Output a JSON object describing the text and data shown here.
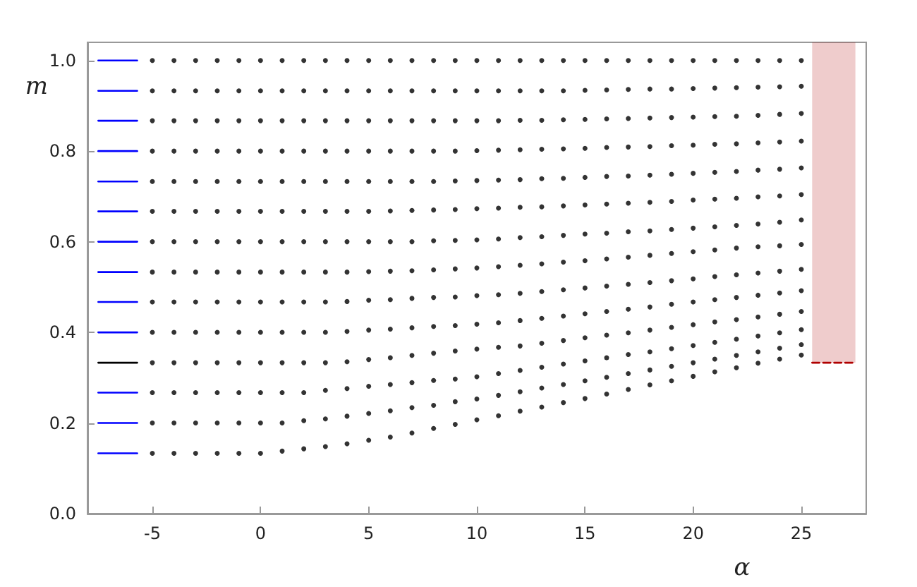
{
  "chart_data": {
    "type": "scatter",
    "xlabel": "α",
    "ylabel": "m",
    "marker": "circle",
    "xlim": [
      -8,
      28
    ],
    "ylim": [
      0,
      1.04
    ],
    "xticks": [
      -5,
      0,
      5,
      10,
      15,
      20,
      25
    ],
    "yticks": [
      {
        "value": 0,
        "label": "0.0"
      },
      {
        "value": 0.2,
        "label": "0.2"
      },
      {
        "value": 0.4,
        "label": "0.4"
      },
      {
        "value": 0.6,
        "label": "0.6"
      },
      {
        "value": 0.8,
        "label": "0.8"
      },
      {
        "value": 1,
        "label": "1.0"
      }
    ],
    "x": [
      -5,
      -4,
      -3,
      -2,
      -1,
      0,
      1,
      2,
      3,
      4,
      5,
      6,
      7,
      8,
      9,
      10,
      11,
      12,
      13,
      14,
      15,
      16,
      17,
      18,
      19,
      20,
      21,
      22,
      23,
      24,
      25
    ],
    "series": [
      {
        "color": "#000000",
        "values": [
          0.133,
          0.133,
          0.133,
          0.133,
          0.133,
          0.133,
          0.138,
          0.143,
          0.148,
          0.154,
          0.162,
          0.169,
          0.178,
          0.188,
          0.197,
          0.207,
          0.216,
          0.226,
          0.235,
          0.245,
          0.254,
          0.264,
          0.274,
          0.284,
          0.293,
          0.303,
          0.313,
          0.322,
          0.332,
          0.341,
          0.35
        ]
      },
      {
        "color": "#000000",
        "values": [
          0.2,
          0.2,
          0.2,
          0.2,
          0.2,
          0.2,
          0.2,
          0.205,
          0.209,
          0.215,
          0.221,
          0.227,
          0.234,
          0.239,
          0.247,
          0.253,
          0.261,
          0.269,
          0.277,
          0.285,
          0.293,
          0.301,
          0.309,
          0.317,
          0.325,
          0.333,
          0.341,
          0.349,
          0.357,
          0.365,
          0.373
        ]
      },
      {
        "color": "#000000",
        "values": [
          0.267,
          0.267,
          0.267,
          0.267,
          0.267,
          0.267,
          0.267,
          0.267,
          0.272,
          0.276,
          0.281,
          0.285,
          0.289,
          0.294,
          0.297,
          0.302,
          0.309,
          0.316,
          0.323,
          0.33,
          0.337,
          0.344,
          0.351,
          0.357,
          0.364,
          0.371,
          0.378,
          0.385,
          0.392,
          0.399,
          0.406
        ]
      },
      {
        "color": "#000000",
        "values": [
          0.333,
          0.333,
          0.333,
          0.333,
          0.333,
          0.333,
          0.333,
          0.333,
          0.333,
          0.335,
          0.34,
          0.344,
          0.349,
          0.354,
          0.359,
          0.363,
          0.367,
          0.37,
          0.376,
          0.382,
          0.388,
          0.394,
          0.399,
          0.405,
          0.411,
          0.417,
          0.423,
          0.428,
          0.434,
          0.44,
          0.446
        ]
      },
      {
        "color": "#000000",
        "values": [
          0.4,
          0.4,
          0.4,
          0.4,
          0.4,
          0.4,
          0.4,
          0.4,
          0.4,
          0.402,
          0.405,
          0.407,
          0.41,
          0.413,
          0.415,
          0.418,
          0.421,
          0.426,
          0.431,
          0.436,
          0.441,
          0.446,
          0.451,
          0.456,
          0.462,
          0.467,
          0.472,
          0.477,
          0.482,
          0.487,
          0.492
        ]
      },
      {
        "color": "#000000",
        "values": [
          0.467,
          0.467,
          0.467,
          0.467,
          0.467,
          0.467,
          0.467,
          0.467,
          0.467,
          0.468,
          0.471,
          0.472,
          0.475,
          0.477,
          0.478,
          0.481,
          0.483,
          0.486,
          0.49,
          0.494,
          0.498,
          0.502,
          0.506,
          0.51,
          0.514,
          0.518,
          0.523,
          0.527,
          0.531,
          0.535,
          0.539
        ]
      },
      {
        "color": "#000000",
        "values": [
          0.533,
          0.533,
          0.533,
          0.533,
          0.533,
          0.533,
          0.533,
          0.533,
          0.533,
          0.533,
          0.534,
          0.535,
          0.536,
          0.538,
          0.54,
          0.542,
          0.545,
          0.548,
          0.551,
          0.555,
          0.558,
          0.562,
          0.566,
          0.57,
          0.574,
          0.578,
          0.582,
          0.586,
          0.589,
          0.591,
          0.594
        ]
      },
      {
        "color": "#000000",
        "values": [
          0.6,
          0.6,
          0.6,
          0.6,
          0.6,
          0.6,
          0.6,
          0.6,
          0.6,
          0.6,
          0.6,
          0.6,
          0.6,
          0.602,
          0.603,
          0.604,
          0.606,
          0.609,
          0.611,
          0.614,
          0.617,
          0.619,
          0.622,
          0.624,
          0.627,
          0.63,
          0.633,
          0.636,
          0.639,
          0.643,
          0.648
        ]
      },
      {
        "color": "#000000",
        "values": [
          0.667,
          0.667,
          0.667,
          0.667,
          0.667,
          0.667,
          0.667,
          0.667,
          0.667,
          0.667,
          0.667,
          0.668,
          0.669,
          0.67,
          0.671,
          0.673,
          0.674,
          0.676,
          0.677,
          0.679,
          0.681,
          0.683,
          0.685,
          0.687,
          0.689,
          0.692,
          0.694,
          0.696,
          0.699,
          0.701,
          0.704
        ]
      },
      {
        "color": "#000000",
        "values": [
          0.733,
          0.733,
          0.733,
          0.733,
          0.733,
          0.733,
          0.733,
          0.733,
          0.733,
          0.733,
          0.733,
          0.733,
          0.733,
          0.733,
          0.734,
          0.735,
          0.736,
          0.737,
          0.739,
          0.74,
          0.742,
          0.744,
          0.745,
          0.747,
          0.749,
          0.751,
          0.753,
          0.755,
          0.758,
          0.76,
          0.763
        ]
      },
      {
        "color": "#000000",
        "values": [
          0.8,
          0.8,
          0.8,
          0.8,
          0.8,
          0.8,
          0.8,
          0.8,
          0.8,
          0.8,
          0.8,
          0.8,
          0.8,
          0.8,
          0.8,
          0.801,
          0.802,
          0.803,
          0.804,
          0.805,
          0.806,
          0.808,
          0.809,
          0.81,
          0.812,
          0.813,
          0.815,
          0.816,
          0.818,
          0.82,
          0.822
        ]
      },
      {
        "color": "#000000",
        "values": [
          0.867,
          0.867,
          0.867,
          0.867,
          0.867,
          0.867,
          0.867,
          0.867,
          0.867,
          0.867,
          0.867,
          0.867,
          0.867,
          0.867,
          0.867,
          0.867,
          0.867,
          0.868,
          0.868,
          0.869,
          0.87,
          0.871,
          0.872,
          0.873,
          0.874,
          0.875,
          0.876,
          0.877,
          0.879,
          0.881,
          0.883
        ]
      },
      {
        "color": "#000000",
        "values": [
          0.933,
          0.933,
          0.933,
          0.933,
          0.933,
          0.933,
          0.933,
          0.933,
          0.933,
          0.933,
          0.933,
          0.933,
          0.933,
          0.933,
          0.933,
          0.933,
          0.933,
          0.933,
          0.933,
          0.933,
          0.934,
          0.935,
          0.936,
          0.937,
          0.937,
          0.938,
          0.939,
          0.94,
          0.941,
          0.942,
          0.943
        ]
      },
      {
        "color": "#000000",
        "values": [
          1,
          1,
          1,
          1,
          1,
          1,
          1,
          1,
          1,
          1,
          1,
          1,
          1,
          1,
          1,
          1,
          1,
          1,
          1,
          1,
          1,
          1,
          1,
          1,
          1,
          1,
          1,
          1,
          1,
          1,
          1
        ]
      },
      {
        "type": "line",
        "marker": "none",
        "line_style": "solid",
        "color": "#0000ff",
        "x": [
          -7.5,
          -5.7
        ],
        "values": [
          0.133,
          0.133
        ]
      },
      {
        "type": "line",
        "marker": "none",
        "line_style": "solid",
        "color": "#0000ff",
        "x": [
          -7.5,
          -5.7
        ],
        "values": [
          0.2,
          0.2
        ]
      },
      {
        "type": "line",
        "marker": "none",
        "line_style": "solid",
        "color": "#0000ff",
        "x": [
          -7.5,
          -5.7
        ],
        "values": [
          0.267,
          0.267
        ]
      },
      {
        "type": "line",
        "marker": "none",
        "line_style": "solid",
        "color": "#0000ff",
        "x": [
          -7.5,
          -5.7
        ],
        "values": [
          0.4,
          0.4
        ]
      },
      {
        "type": "line",
        "marker": "none",
        "line_style": "solid",
        "color": "#0000ff",
        "x": [
          -7.5,
          -5.7
        ],
        "values": [
          0.467,
          0.467
        ]
      },
      {
        "type": "line",
        "marker": "none",
        "line_style": "solid",
        "color": "#0000ff",
        "x": [
          -7.5,
          -5.7
        ],
        "values": [
          0.533,
          0.533
        ]
      },
      {
        "type": "line",
        "marker": "none",
        "line_style": "solid",
        "color": "#0000ff",
        "x": [
          -7.5,
          -5.7
        ],
        "values": [
          0.6,
          0.6
        ]
      },
      {
        "type": "line",
        "marker": "none",
        "line_style": "solid",
        "color": "#0000ff",
        "x": [
          -7.5,
          -5.7
        ],
        "values": [
          0.667,
          0.667
        ]
      },
      {
        "type": "line",
        "marker": "none",
        "line_style": "solid",
        "color": "#0000ff",
        "x": [
          -7.5,
          -5.7
        ],
        "values": [
          0.733,
          0.733
        ]
      },
      {
        "type": "line",
        "marker": "none",
        "line_style": "solid",
        "color": "#0000ff",
        "x": [
          -7.5,
          -5.7
        ],
        "values": [
          0.8,
          0.8
        ]
      },
      {
        "type": "line",
        "marker": "none",
        "line_style": "solid",
        "color": "#0000ff",
        "x": [
          -7.5,
          -5.7
        ],
        "values": [
          0.867,
          0.867
        ]
      },
      {
        "type": "line",
        "marker": "none",
        "line_style": "solid",
        "color": "#0000ff",
        "x": [
          -7.5,
          -5.7
        ],
        "values": [
          0.933,
          0.933
        ]
      },
      {
        "type": "line",
        "marker": "none",
        "line_style": "solid",
        "color": "#0000ff",
        "x": [
          -7.5,
          -5.7
        ],
        "values": [
          1,
          1
        ]
      },
      {
        "type": "line",
        "marker": "none",
        "line_style": "solid",
        "color": "#000000",
        "x": [
          -7.5,
          -5.7
        ],
        "values": [
          0.333,
          0.333
        ]
      },
      {
        "type": "line",
        "marker": "none",
        "line_style": "dashed",
        "color": "#b00000",
        "x": [
          25.5,
          27.5
        ],
        "values": [
          0.333,
          0.333
        ],
        "lower": [
          0.333,
          0.333
        ],
        "upper": [
          1.04,
          1.04
        ]
      }
    ]
  }
}
